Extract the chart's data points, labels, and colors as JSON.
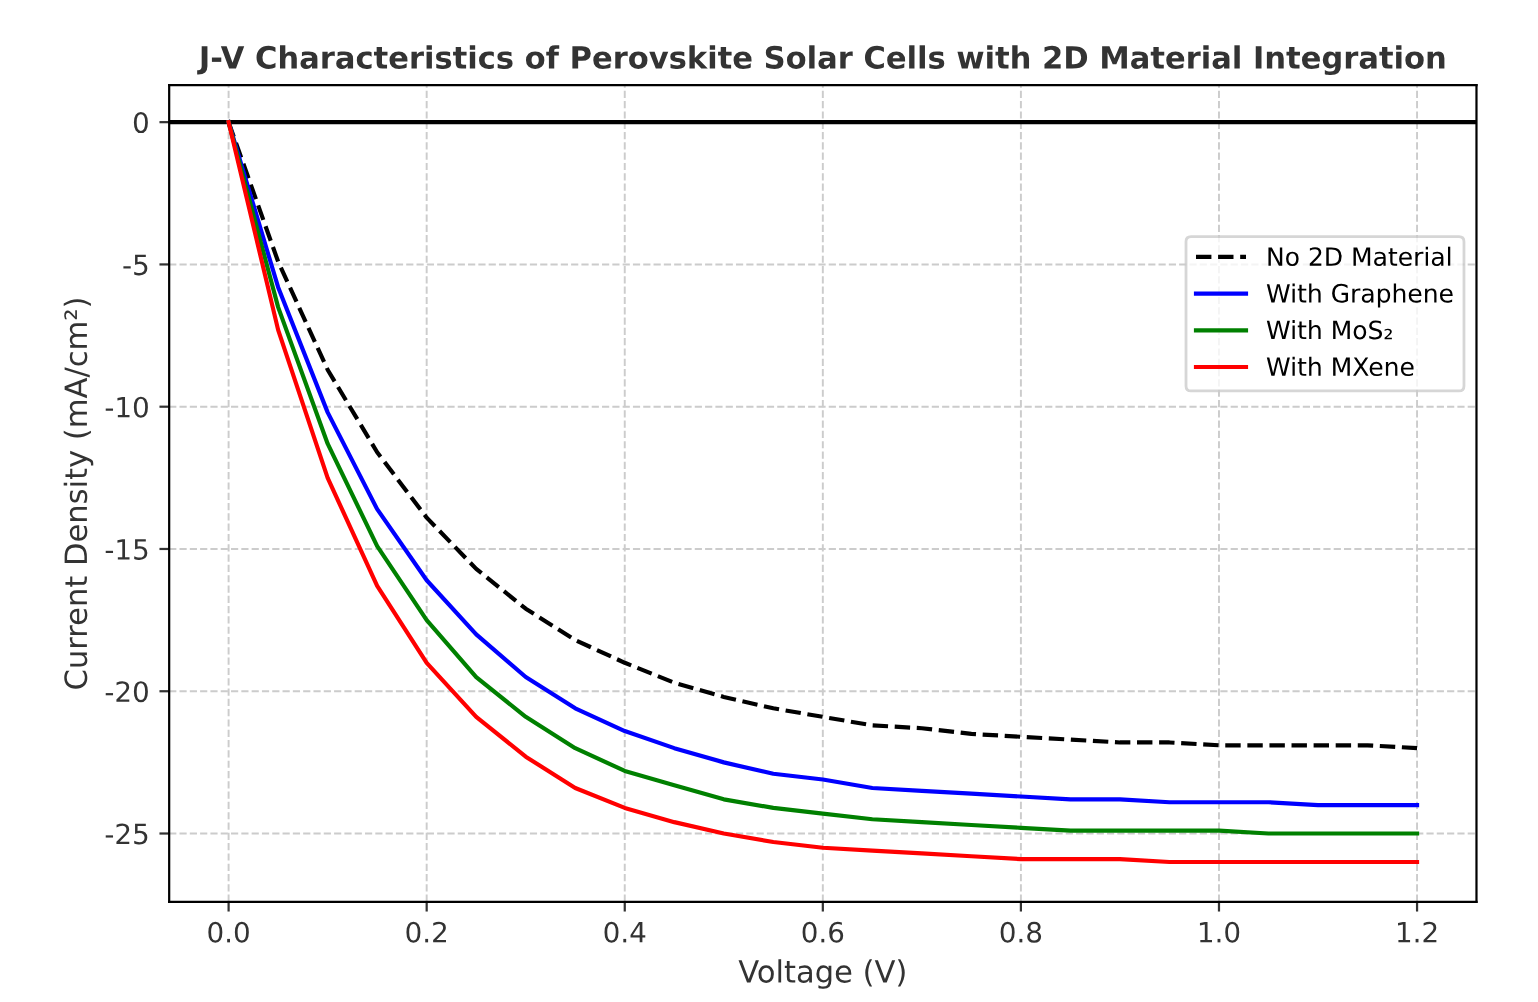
{
  "chart_data": {
    "type": "line",
    "title": "J-V Characteristics of Perovskite Solar Cells with 2D Material Integration",
    "xlabel": "Voltage (V)",
    "ylabel": "Current Density (mA/cm²)",
    "x": [
      0,
      0.05,
      0.1,
      0.15,
      0.2,
      0.25,
      0.3,
      0.35,
      0.4,
      0.45,
      0.5,
      0.55,
      0.6,
      0.65,
      0.7,
      0.75,
      0.8,
      0.85,
      0.9,
      0.95,
      1.0,
      1.05,
      1.1,
      1.15,
      1.2
    ],
    "series": [
      {
        "name": "No 2D Material",
        "color": "#000000",
        "line_style": "dashed",
        "values": [
          0,
          -4.9,
          -8.7,
          -11.6,
          -13.9,
          -15.7,
          -17.1,
          -18.2,
          -19.0,
          -19.7,
          -20.2,
          -20.6,
          -20.9,
          -21.2,
          -21.3,
          -21.5,
          -21.6,
          -21.7,
          -21.8,
          -21.8,
          -21.9,
          -21.9,
          -21.9,
          -21.9,
          -22.0
        ]
      },
      {
        "name": "With Graphene",
        "color": "#0000ff",
        "line_style": "solid",
        "values": [
          0,
          -5.8,
          -10.2,
          -13.6,
          -16.1,
          -18.0,
          -19.5,
          -20.6,
          -21.4,
          -22.0,
          -22.5,
          -22.9,
          -23.1,
          -23.4,
          -23.5,
          -23.6,
          -23.7,
          -23.8,
          -23.8,
          -23.9,
          -23.9,
          -23.9,
          -24.0,
          -24.0,
          -24.0
        ]
      },
      {
        "name": "With MoS₂",
        "color": "#008000",
        "line_style": "solid",
        "values": [
          0,
          -6.5,
          -11.3,
          -14.9,
          -17.5,
          -19.5,
          -20.9,
          -22.0,
          -22.8,
          -23.3,
          -23.8,
          -24.1,
          -24.3,
          -24.5,
          -24.6,
          -24.7,
          -24.8,
          -24.9,
          -24.9,
          -24.9,
          -24.9,
          -25.0,
          -25.0,
          -25.0,
          -25.0
        ]
      },
      {
        "name": "With MXene",
        "color": "#ff0000",
        "line_style": "solid",
        "values": [
          0,
          -7.3,
          -12.5,
          -16.3,
          -19.0,
          -20.9,
          -22.3,
          -23.4,
          -24.1,
          -24.6,
          -25.0,
          -25.3,
          -25.5,
          -25.6,
          -25.7,
          -25.8,
          -25.9,
          -25.9,
          -25.9,
          -26.0,
          -26.0,
          -26.0,
          -26.0,
          -26.0,
          -26.0
        ]
      }
    ],
    "xlim": [
      -0.06,
      1.26
    ],
    "ylim": [
      -27.4,
      1.3
    ],
    "xticks": [
      {
        "value": 0,
        "label": "0.0"
      },
      0.2,
      0.4,
      0.6,
      0.8,
      {
        "value": 1,
        "label": "1.0"
      },
      1.2
    ],
    "yticks": [
      0,
      -5,
      -10,
      -15,
      -20,
      -25
    ],
    "ref_lines": [
      {
        "axis": "y",
        "value": 0,
        "color": "#000000",
        "line_style": "solid"
      }
    ],
    "grid": true,
    "legend": "right",
    "marker": "none"
  }
}
